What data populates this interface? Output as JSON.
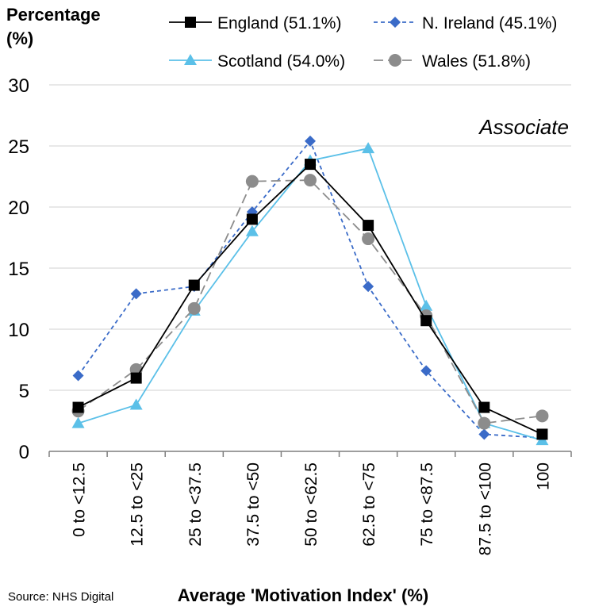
{
  "chart_data": {
    "type": "line",
    "ylabel_line1": "Percentage",
    "ylabel_line2": "(%)",
    "xlabel": "Average 'Motivation Index' (%)",
    "annotation": "Associate",
    "source": "Source: NHS Digital",
    "ylim": [
      0,
      30
    ],
    "yticks": [
      0,
      5,
      10,
      15,
      20,
      25,
      30
    ],
    "grid": true,
    "legend_position": "top",
    "categories": [
      "0 to <12.5",
      "12.5 to <25",
      "25 to <37.5",
      "37.5 to <50",
      "50 to <62.5",
      "62.5 to <75",
      "75 to <87.5",
      "87.5 to <100",
      "100"
    ],
    "series": [
      {
        "name": "England (51.1%)",
        "color": "#000000",
        "marker": "square",
        "dash": "solid",
        "values": [
          3.6,
          6.0,
          13.6,
          19.0,
          23.5,
          18.5,
          10.7,
          3.6,
          1.4
        ]
      },
      {
        "name": "N. Ireland (45.1%)",
        "color": "#3A6BC8",
        "marker": "diamond",
        "dash": "dashed",
        "values": [
          6.2,
          12.9,
          13.5,
          19.6,
          25.4,
          13.5,
          6.6,
          1.4,
          1.1
        ]
      },
      {
        "name": "Scotland (54.0%)",
        "color": "#5BC0E8",
        "marker": "triangle",
        "dash": "solid",
        "values": [
          2.3,
          3.8,
          11.5,
          18.0,
          23.8,
          24.8,
          11.9,
          2.3,
          0.9
        ]
      },
      {
        "name": "Wales (51.8%)",
        "color": "#8C8C8C",
        "marker": "circle",
        "dash": "dashed",
        "values": [
          3.3,
          6.7,
          11.7,
          22.1,
          22.2,
          17.4,
          11.1,
          2.3,
          2.9
        ]
      }
    ]
  }
}
